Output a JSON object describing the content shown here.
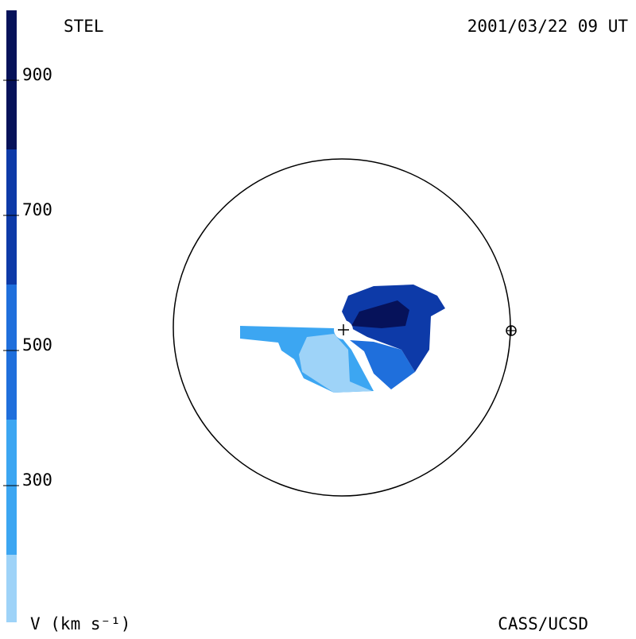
{
  "header": {
    "left": "STEL",
    "right": "2001/03/22 09 UT"
  },
  "footer": {
    "left": "V (km s⁻¹)",
    "right": "CASS/UCSD"
  },
  "colorbar": {
    "range": [
      100,
      1000
    ],
    "ticks": [
      900,
      700,
      500,
      300
    ]
  }
}
